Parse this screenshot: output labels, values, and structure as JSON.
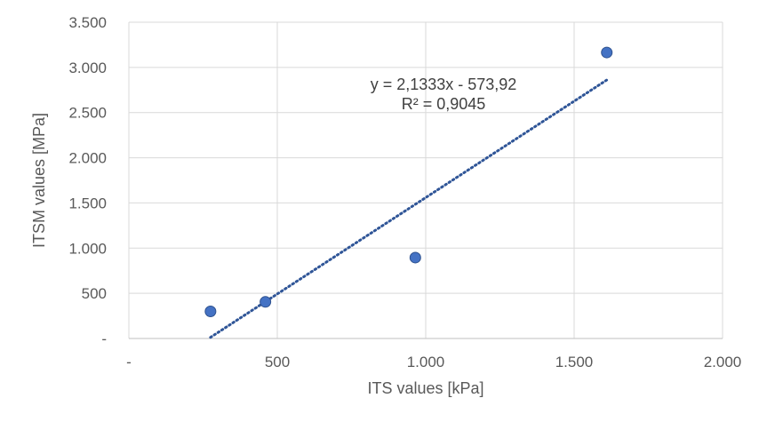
{
  "chart_data": {
    "type": "scatter",
    "title": "",
    "xlabel": "ITS values [kPa]",
    "ylabel": "ITSM values [MPa]",
    "xlim": [
      0,
      2000
    ],
    "ylim": [
      0,
      3500
    ],
    "x_ticks": [
      0,
      500,
      1000,
      1500,
      2000
    ],
    "x_tick_labels": [
      "-",
      "500",
      "1.000",
      "1.500",
      "2.000"
    ],
    "y_ticks": [
      0,
      500,
      1000,
      1500,
      2000,
      2500,
      3000,
      3500
    ],
    "y_tick_labels": [
      "-",
      "500",
      "1.000",
      "1.500",
      "2.000",
      "2.500",
      "3.000",
      "3.500"
    ],
    "grid": true,
    "series": [
      {
        "points": [
          {
            "x": 275,
            "y": 300
          },
          {
            "x": 460,
            "y": 405
          },
          {
            "x": 965,
            "y": 895
          },
          {
            "x": 1610,
            "y": 3165
          }
        ]
      }
    ],
    "trendline": {
      "type": "linear",
      "slope": 2.1333,
      "intercept": -573.92,
      "x_range": [
        275,
        1610
      ],
      "equation_label": "y = 2,1333x - 573,92",
      "r2_label": "R² = 0,9045"
    },
    "colors": {
      "marker_fill": "#4472C4",
      "marker_stroke": "#2F528F",
      "trendline": "#2F5597",
      "grid": "#D9D9D9",
      "text": "#595959"
    }
  }
}
